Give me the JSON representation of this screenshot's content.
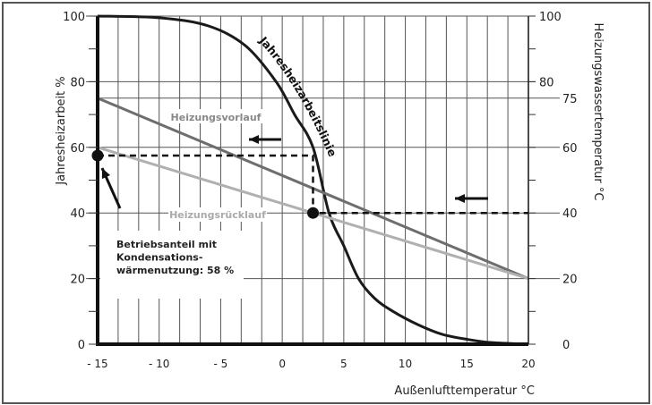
{
  "chart_data": {
    "type": "line",
    "xlabel": "Außenlufttemperatur  °C",
    "ylabel_left": "Jahresheizarbeit %",
    "ylabel_right": "Heizungswassertemperatur  °C",
    "xlim": [
      -15,
      20
    ],
    "ylim": [
      0,
      100
    ],
    "x_ticks": [
      -15,
      -10,
      -5,
      0,
      5,
      10,
      15,
      20
    ],
    "x_tick_labels": [
      "- 15",
      "- 10",
      "- 5",
      "0",
      "5",
      "10",
      "15",
      "20"
    ],
    "y_ticks_left": [
      0,
      20,
      40,
      60,
      80,
      100
    ],
    "y_ticks_right": [
      0,
      20,
      40,
      60,
      75,
      80,
      100
    ],
    "grid": true,
    "series": [
      {
        "name": "Jahresheizarbeitslinie",
        "color": "#1a1a1a",
        "x": [
          -15,
          -10,
          -6,
          -3,
          -0.5,
          1,
          2.5,
          3.8,
          5,
          6.2,
          7.5,
          9,
          11,
          13,
          15,
          17,
          20
        ],
        "y": [
          100,
          99.5,
          97,
          91,
          80,
          70,
          60,
          40,
          30,
          20,
          14,
          10,
          6,
          3,
          1.5,
          0.5,
          0
        ]
      },
      {
        "name": "Heizungsvorlauf",
        "color": "#6e6e6e",
        "x": [
          -15,
          20
        ],
        "y": [
          75,
          20
        ]
      },
      {
        "name": "Heizungsrücklauf",
        "color": "#b0b0b0",
        "x": [
          -15,
          20
        ],
        "y": [
          60,
          20
        ]
      }
    ],
    "reference_lines": [
      {
        "style": "dashed",
        "x": [
          -15,
          2.5,
          2.5,
          20
        ],
        "y": [
          57.5,
          57.5,
          40,
          40
        ]
      }
    ],
    "markers": [
      {
        "x": -15,
        "y": 57.5
      },
      {
        "x": 2.5,
        "y": 40
      }
    ],
    "annotation": {
      "lines": [
        "Betriebsanteil mit",
        "Kondensations-",
        "wärmenutzung: 58 %"
      ]
    }
  }
}
